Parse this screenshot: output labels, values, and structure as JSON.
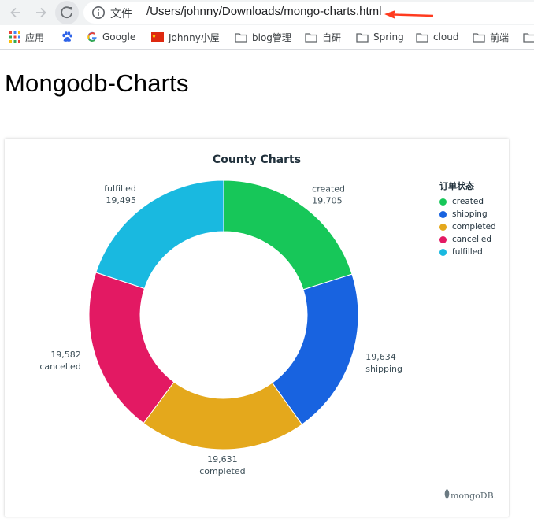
{
  "browser": {
    "info_label": "文件",
    "url": "/Users/johnny/Downloads/mongo-charts.html",
    "bookmarks": [
      {
        "label": "应用",
        "icon": "apps-grid-icon"
      },
      {
        "label": "",
        "icon": "baidu-paw-icon"
      },
      {
        "label": "Google",
        "icon": "google-icon"
      },
      {
        "label": "Johnny小屋",
        "icon": "china-flag-icon"
      },
      {
        "label": "blog管理",
        "icon": "folder-icon"
      },
      {
        "label": "自研",
        "icon": "folder-icon"
      },
      {
        "label": "Spring",
        "icon": "folder-icon"
      },
      {
        "label": "cloud",
        "icon": "folder-icon"
      },
      {
        "label": "前端",
        "icon": "folder-icon"
      },
      {
        "label": "",
        "icon": "folder-icon"
      }
    ]
  },
  "page": {
    "title": "Mongodb-Charts"
  },
  "chart_data": {
    "type": "pie",
    "title": "County Charts",
    "donut": true,
    "legend_title": "订单状态",
    "legend_position": "right",
    "categories": [
      "created",
      "shipping",
      "completed",
      "cancelled",
      "fulfilled"
    ],
    "values": [
      19705,
      19634,
      19631,
      19582,
      19495
    ],
    "value_labels": [
      "19,705",
      "19,634",
      "19,631",
      "19,582",
      "19,495"
    ],
    "colors": [
      "#17c759",
      "#1863e0",
      "#e4a81c",
      "#e31963",
      "#19b9e0"
    ]
  },
  "branding": {
    "logo_text": "mongoDB."
  },
  "colors": {
    "annotation_arrow": "#ff3b1f"
  }
}
